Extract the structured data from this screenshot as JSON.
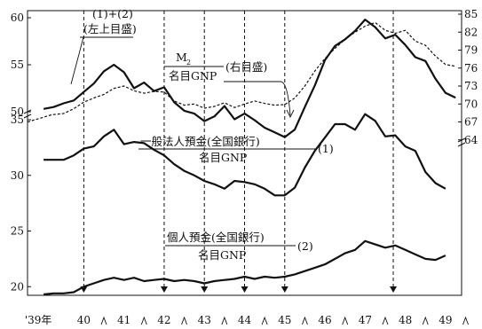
{
  "chart_data": [
    {
      "type": "line",
      "title": "",
      "axes": {
        "left": {
          "upper_ticks": [
            "60",
            "55",
            "50"
          ],
          "lower_ticks": [
            "35",
            "30",
            "25",
            "20"
          ]
        },
        "right": {
          "ticks": [
            "85",
            "82",
            "79",
            "76",
            "73",
            "70",
            "67",
            "64"
          ]
        }
      },
      "x": {
        "tick_labels": [
          "'39年",
          "40",
          "41",
          "42",
          "43",
          "44",
          "45",
          "46",
          "47",
          "48",
          "49"
        ],
        "event_markers": [
          40,
          42,
          43,
          44,
          45,
          47.7
        ]
      },
      "labels": {
        "sum_line": "(1)+(2)",
        "sum_axis": "(左上目盛)",
        "ratio_num": "M",
        "ratio_sub": "2",
        "ratio_den": "名目GNP",
        "ratio_axis": "(右目盛)",
        "corp_num": "一般法人預金(全国銀行)",
        "corp_den": "名目GNP",
        "corp_tag": "(1)",
        "indiv_num": "個人預金(全国銀行)",
        "indiv_den": "名目GNP",
        "indiv_tag": "(2)"
      },
      "series": [
        {
          "style": "solid",
          "axis": "left-upper",
          "points": [
            [
              39,
              50.3
            ],
            [
              39.25,
              50.5
            ],
            [
              39.5,
              50.9
            ],
            [
              39.75,
              51.2
            ],
            [
              40,
              52.1
            ],
            [
              40.25,
              53.0
            ],
            [
              40.5,
              54.3
            ],
            [
              40.75,
              55.0
            ],
            [
              41,
              54.2
            ],
            [
              41.25,
              52.5
            ],
            [
              41.5,
              53.1
            ],
            [
              41.75,
              52.2
            ],
            [
              42,
              52.6
            ],
            [
              42.25,
              51.0
            ],
            [
              42.5,
              50.1
            ],
            [
              42.75,
              49.8
            ],
            [
              43,
              49.0
            ],
            [
              43.25,
              49.5
            ],
            [
              43.5,
              50.6
            ],
            [
              43.75,
              49.2
            ],
            [
              44,
              49.8
            ],
            [
              44.25,
              49.1
            ],
            [
              44.5,
              48.3
            ],
            [
              44.75,
              47.8
            ],
            [
              45,
              47.3
            ],
            [
              45.25,
              48.1
            ],
            [
              45.5,
              50.5
            ],
            [
              45.75,
              52.8
            ],
            [
              46,
              55.5
            ],
            [
              46.25,
              57.0
            ],
            [
              46.5,
              57.7
            ],
            [
              46.75,
              58.6
            ],
            [
              47,
              59.8
            ],
            [
              47.25,
              59.0
            ],
            [
              47.5,
              57.8
            ],
            [
              47.75,
              58.2
            ],
            [
              48,
              57.1
            ],
            [
              48.25,
              55.8
            ],
            [
              48.5,
              55.4
            ],
            [
              48.75,
              53.5
            ],
            [
              49,
              52.0
            ],
            [
              49.25,
              51.5
            ]
          ]
        },
        {
          "style": "dashed",
          "axis": "right",
          "points": [
            [
              38.6,
              67.0
            ],
            [
              38.9,
              67.6
            ],
            [
              39.2,
              68.2
            ],
            [
              39.5,
              68.4
            ],
            [
              39.75,
              69.2
            ],
            [
              40,
              70.3
            ],
            [
              40.25,
              71.0
            ],
            [
              40.5,
              71.6
            ],
            [
              40.75,
              72.6
            ],
            [
              41,
              73.0
            ],
            [
              41.25,
              72.2
            ],
            [
              41.5,
              71.8
            ],
            [
              41.75,
              72.1
            ],
            [
              42,
              72.0
            ],
            [
              42.25,
              70.5
            ],
            [
              42.5,
              69.8
            ],
            [
              42.75,
              70.0
            ],
            [
              43,
              69.3
            ],
            [
              43.25,
              69.6
            ],
            [
              43.5,
              70.2
            ],
            [
              43.75,
              69.4
            ],
            [
              44,
              70.0
            ],
            [
              44.25,
              70.5
            ],
            [
              44.5,
              70.1
            ],
            [
              44.75,
              69.8
            ],
            [
              45,
              69.9
            ],
            [
              45.25,
              71.0
            ],
            [
              45.5,
              73.0
            ],
            [
              45.75,
              75.5
            ],
            [
              46,
              77.6
            ],
            [
              46.25,
              79.3
            ],
            [
              46.5,
              80.8
            ],
            [
              46.75,
              82.0
            ],
            [
              47,
              83.0
            ],
            [
              47.25,
              83.6
            ],
            [
              47.5,
              82.3
            ],
            [
              47.75,
              81.8
            ],
            [
              48,
              82.3
            ],
            [
              48.25,
              80.5
            ],
            [
              48.5,
              79.8
            ],
            [
              48.75,
              78.0
            ],
            [
              49,
              76.6
            ],
            [
              49.25,
              76.3
            ]
          ]
        },
        {
          "style": "solid",
          "axis": "left-lower",
          "name": "(1)",
          "points": [
            [
              39,
              31.4
            ],
            [
              39.25,
              31.4
            ],
            [
              39.5,
              31.4
            ],
            [
              39.75,
              31.8
            ],
            [
              40,
              32.4
            ],
            [
              40.25,
              32.6
            ],
            [
              40.5,
              33.5
            ],
            [
              40.75,
              34.1
            ],
            [
              41,
              32.8
            ],
            [
              41.25,
              33.0
            ],
            [
              41.5,
              32.9
            ],
            [
              41.75,
              32.3
            ],
            [
              42,
              31.8
            ],
            [
              42.25,
              31.0
            ],
            [
              42.5,
              30.4
            ],
            [
              42.75,
              30.0
            ],
            [
              43,
              29.5
            ],
            [
              43.25,
              29.2
            ],
            [
              43.5,
              28.8
            ],
            [
              43.75,
              29.5
            ],
            [
              44,
              29.4
            ],
            [
              44.25,
              29.2
            ],
            [
              44.5,
              28.8
            ],
            [
              44.75,
              28.2
            ],
            [
              45,
              28.2
            ],
            [
              45.25,
              28.9
            ],
            [
              45.5,
              30.7
            ],
            [
              45.75,
              32.2
            ],
            [
              46,
              33.4
            ],
            [
              46.25,
              34.6
            ],
            [
              46.5,
              34.6
            ],
            [
              46.75,
              34.1
            ],
            [
              47,
              35.5
            ],
            [
              47.25,
              34.9
            ],
            [
              47.5,
              33.5
            ],
            [
              47.75,
              33.6
            ],
            [
              48,
              32.6
            ],
            [
              48.25,
              32.2
            ],
            [
              48.5,
              30.3
            ],
            [
              48.75,
              29.3
            ],
            [
              49,
              28.8
            ]
          ]
        },
        {
          "style": "solid",
          "axis": "left-lower",
          "name": "(2)",
          "points": [
            [
              39,
              19.3
            ],
            [
              39.25,
              19.4
            ],
            [
              39.5,
              19.4
            ],
            [
              39.75,
              19.5
            ],
            [
              40,
              20.0
            ],
            [
              40.25,
              20.3
            ],
            [
              40.5,
              20.6
            ],
            [
              40.75,
              20.8
            ],
            [
              41,
              20.6
            ],
            [
              41.25,
              20.8
            ],
            [
              41.5,
              20.5
            ],
            [
              41.75,
              20.6
            ],
            [
              42,
              20.7
            ],
            [
              42.25,
              20.5
            ],
            [
              42.5,
              20.6
            ],
            [
              42.75,
              20.5
            ],
            [
              43,
              20.3
            ],
            [
              43.25,
              20.5
            ],
            [
              43.5,
              20.6
            ],
            [
              43.75,
              20.7
            ],
            [
              44,
              20.9
            ],
            [
              44.25,
              20.7
            ],
            [
              44.5,
              20.9
            ],
            [
              44.75,
              20.8
            ],
            [
              45,
              20.9
            ],
            [
              45.25,
              21.1
            ],
            [
              45.5,
              21.4
            ],
            [
              45.75,
              21.7
            ],
            [
              46,
              22.0
            ],
            [
              46.25,
              22.5
            ],
            [
              46.5,
              23.0
            ],
            [
              46.75,
              23.3
            ],
            [
              47,
              24.1
            ],
            [
              47.25,
              23.8
            ],
            [
              47.5,
              23.5
            ],
            [
              47.75,
              23.7
            ],
            [
              48,
              23.3
            ],
            [
              48.25,
              22.9
            ],
            [
              48.5,
              22.5
            ],
            [
              48.75,
              22.4
            ],
            [
              49,
              22.8
            ]
          ]
        }
      ]
    }
  ]
}
